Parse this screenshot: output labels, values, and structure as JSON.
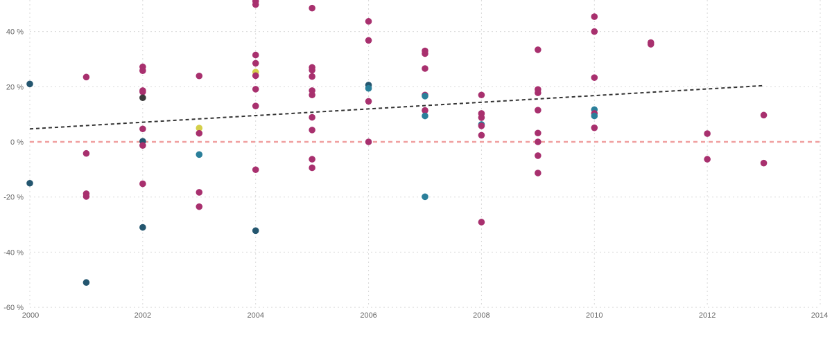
{
  "chart_data": {
    "type": "scatter",
    "xlim": [
      2000,
      2014
    ],
    "ylim": [
      -60,
      50
    ],
    "x_ticks": [
      2000,
      2002,
      2004,
      2006,
      2008,
      2010,
      2012,
      2014
    ],
    "y_ticks": [
      -60,
      -40,
      -20,
      0,
      20,
      40
    ],
    "y_tick_labels": [
      "-60 %",
      "-40 %",
      "-20 %",
      "0 %",
      "20 %",
      "40 %"
    ],
    "x_tick_labels": [
      "2000",
      "2002",
      "2004",
      "2006",
      "2008",
      "2010",
      "2012",
      "2014"
    ],
    "grid": true,
    "reference_line": {
      "y": 0,
      "color": "#f0a0a0",
      "style": "dashed"
    },
    "trend_line": {
      "x": [
        2000,
        2013
      ],
      "y": [
        4.7,
        20.4
      ],
      "color": "#333333",
      "style": "dashed"
    },
    "colors": {
      "magenta": "#a8306e",
      "teal": "#2a7f9a",
      "navy": "#24566f",
      "dark": "#3a3a3a",
      "yellow": "#d4cf4a"
    },
    "points": [
      {
        "x": 2000,
        "y": 21,
        "c": "navy"
      },
      {
        "x": 2000,
        "y": -15,
        "c": "navy"
      },
      {
        "x": 2001,
        "y": 23.5,
        "c": "magenta"
      },
      {
        "x": 2001,
        "y": -4.2,
        "c": "magenta"
      },
      {
        "x": 2001,
        "y": -18.8,
        "c": "magenta"
      },
      {
        "x": 2001,
        "y": -19.8,
        "c": "magenta"
      },
      {
        "x": 2001,
        "y": -51,
        "c": "navy"
      },
      {
        "x": 2002,
        "y": 27.2,
        "c": "magenta"
      },
      {
        "x": 2002,
        "y": 25.8,
        "c": "magenta"
      },
      {
        "x": 2002,
        "y": 18.6,
        "c": "magenta"
      },
      {
        "x": 2002,
        "y": 18.1,
        "c": "magenta"
      },
      {
        "x": 2002,
        "y": 16,
        "c": "dark"
      },
      {
        "x": 2002,
        "y": 4.7,
        "c": "magenta"
      },
      {
        "x": 2002,
        "y": 0.2,
        "c": "navy"
      },
      {
        "x": 2002,
        "y": -1.3,
        "c": "magenta"
      },
      {
        "x": 2002,
        "y": -15.2,
        "c": "magenta"
      },
      {
        "x": 2002,
        "y": -31,
        "c": "navy"
      },
      {
        "x": 2003,
        "y": 23.9,
        "c": "magenta"
      },
      {
        "x": 2003,
        "y": 5,
        "c": "yellow"
      },
      {
        "x": 2003,
        "y": 3.1,
        "c": "magenta"
      },
      {
        "x": 2003,
        "y": -4.6,
        "c": "teal"
      },
      {
        "x": 2003,
        "y": -18.3,
        "c": "magenta"
      },
      {
        "x": 2003,
        "y": -23.5,
        "c": "magenta"
      },
      {
        "x": 2004,
        "y": 51,
        "c": "magenta"
      },
      {
        "x": 2004,
        "y": 49.8,
        "c": "magenta"
      },
      {
        "x": 2004,
        "y": 31.5,
        "c": "magenta"
      },
      {
        "x": 2004,
        "y": 28.5,
        "c": "magenta"
      },
      {
        "x": 2004,
        "y": 25.3,
        "c": "yellow"
      },
      {
        "x": 2004,
        "y": 24,
        "c": "magenta"
      },
      {
        "x": 2004,
        "y": 19.1,
        "c": "magenta"
      },
      {
        "x": 2004,
        "y": 13,
        "c": "magenta"
      },
      {
        "x": 2004,
        "y": -10.1,
        "c": "magenta"
      },
      {
        "x": 2004,
        "y": -32.2,
        "c": "navy"
      },
      {
        "x": 2005,
        "y": 48.5,
        "c": "magenta"
      },
      {
        "x": 2005,
        "y": 27,
        "c": "magenta"
      },
      {
        "x": 2005,
        "y": 26,
        "c": "magenta"
      },
      {
        "x": 2005,
        "y": 23.7,
        "c": "magenta"
      },
      {
        "x": 2005,
        "y": 18.6,
        "c": "magenta"
      },
      {
        "x": 2005,
        "y": 17,
        "c": "magenta"
      },
      {
        "x": 2005,
        "y": 8.9,
        "c": "magenta"
      },
      {
        "x": 2005,
        "y": 4.3,
        "c": "magenta"
      },
      {
        "x": 2005,
        "y": -6.3,
        "c": "magenta"
      },
      {
        "x": 2005,
        "y": -9.4,
        "c": "magenta"
      },
      {
        "x": 2006,
        "y": 43.7,
        "c": "magenta"
      },
      {
        "x": 2006,
        "y": 36.8,
        "c": "magenta"
      },
      {
        "x": 2006,
        "y": 20.6,
        "c": "navy"
      },
      {
        "x": 2006,
        "y": 19.4,
        "c": "teal"
      },
      {
        "x": 2006,
        "y": 14.7,
        "c": "magenta"
      },
      {
        "x": 2006,
        "y": 0,
        "c": "magenta"
      },
      {
        "x": 2007,
        "y": 33,
        "c": "magenta"
      },
      {
        "x": 2007,
        "y": 32,
        "c": "magenta"
      },
      {
        "x": 2007,
        "y": 26.6,
        "c": "magenta"
      },
      {
        "x": 2007,
        "y": 17,
        "c": "magenta"
      },
      {
        "x": 2007,
        "y": 16.6,
        "c": "teal"
      },
      {
        "x": 2007,
        "y": 11.4,
        "c": "magenta"
      },
      {
        "x": 2007,
        "y": 9.4,
        "c": "teal"
      },
      {
        "x": 2007,
        "y": -19.9,
        "c": "teal"
      },
      {
        "x": 2008,
        "y": 17,
        "c": "magenta"
      },
      {
        "x": 2008,
        "y": 10.3,
        "c": "magenta"
      },
      {
        "x": 2008,
        "y": 8.8,
        "c": "magenta"
      },
      {
        "x": 2008,
        "y": 6.3,
        "c": "teal"
      },
      {
        "x": 2008,
        "y": 5.8,
        "c": "magenta"
      },
      {
        "x": 2008,
        "y": 2.4,
        "c": "magenta"
      },
      {
        "x": 2008,
        "y": -29.1,
        "c": "magenta"
      },
      {
        "x": 2009,
        "y": 33.4,
        "c": "magenta"
      },
      {
        "x": 2009,
        "y": 19,
        "c": "magenta"
      },
      {
        "x": 2009,
        "y": 17.8,
        "c": "magenta"
      },
      {
        "x": 2009,
        "y": 11.5,
        "c": "magenta"
      },
      {
        "x": 2009,
        "y": 3.2,
        "c": "magenta"
      },
      {
        "x": 2009,
        "y": 0,
        "c": "magenta"
      },
      {
        "x": 2009,
        "y": -5,
        "c": "magenta"
      },
      {
        "x": 2009,
        "y": -11.3,
        "c": "magenta"
      },
      {
        "x": 2010,
        "y": 45.4,
        "c": "magenta"
      },
      {
        "x": 2010,
        "y": 40,
        "c": "magenta"
      },
      {
        "x": 2010,
        "y": 23.3,
        "c": "magenta"
      },
      {
        "x": 2010,
        "y": 11.7,
        "c": "teal"
      },
      {
        "x": 2010,
        "y": 10.3,
        "c": "magenta"
      },
      {
        "x": 2010,
        "y": 9.4,
        "c": "teal"
      },
      {
        "x": 2010,
        "y": 5.1,
        "c": "magenta"
      },
      {
        "x": 2011,
        "y": 36,
        "c": "magenta"
      },
      {
        "x": 2011,
        "y": 35.4,
        "c": "magenta"
      },
      {
        "x": 2012,
        "y": 3,
        "c": "magenta"
      },
      {
        "x": 2012,
        "y": -6.3,
        "c": "magenta"
      },
      {
        "x": 2013,
        "y": 9.7,
        "c": "magenta"
      },
      {
        "x": 2013,
        "y": -7.7,
        "c": "magenta"
      }
    ]
  }
}
